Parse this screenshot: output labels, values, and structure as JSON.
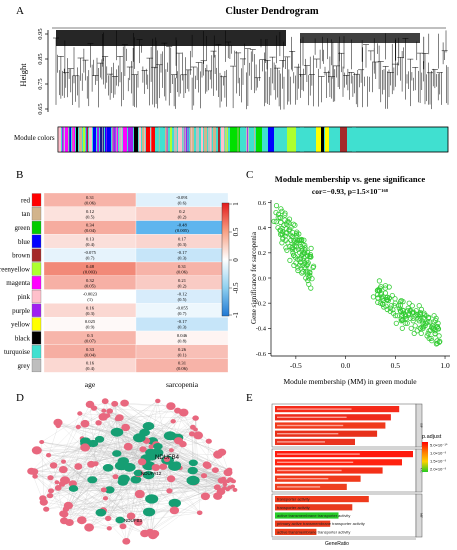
{
  "panels": {
    "A": {
      "letter": "A",
      "title": "Cluster Dendrogram",
      "ylabel": "Height",
      "yticks": [
        "0.95",
        "0.85",
        "0.75",
        "0.65"
      ],
      "strip_label": "Module colors"
    },
    "B": {
      "letter": "B",
      "columns": [
        "age",
        "sarcopenia"
      ],
      "colorbar_ticks": [
        "1",
        "0.5",
        "0",
        "-0.5",
        "-1"
      ],
      "rows": [
        {
          "module": "red",
          "color": "#ff0000",
          "age_r": "0.31",
          "age_p": "(0.06)",
          "age_v": 0.31,
          "sar_r": "-0.091",
          "sar_p": "(0.6)",
          "sar_v": -0.091
        },
        {
          "module": "tan",
          "color": "#d2b48c",
          "age_r": "0.12",
          "age_p": "(0.5)",
          "age_v": 0.12,
          "sar_r": "0.2",
          "sar_p": "(0.2)",
          "sar_v": 0.2
        },
        {
          "module": "green",
          "color": "#00cc00",
          "age_r": "0.34",
          "age_p": "(0.04)",
          "age_v": 0.34,
          "sar_r": "-0.48",
          "sar_p": "(0.005)",
          "sar_v": -0.48
        },
        {
          "module": "blue",
          "color": "#0000ff",
          "age_r": "0.13",
          "age_p": "(0.4)",
          "age_v": 0.13,
          "sar_r": "0.17",
          "sar_p": "(0.3)",
          "sar_v": 0.17
        },
        {
          "module": "brown",
          "color": "#a52a2a",
          "age_r": "-0.075",
          "age_p": "(0.7)",
          "age_v": -0.075,
          "sar_r": "-0.17",
          "sar_p": "(0.3)",
          "sar_v": -0.17
        },
        {
          "module": "greenyellow",
          "color": "#adff2f",
          "age_r": "0.48",
          "age_p": "(0.003)",
          "age_v": 0.48,
          "sar_r": "0.31",
          "sar_p": "(0.06)",
          "sar_v": 0.31
        },
        {
          "module": "magenta",
          "color": "#ff00ff",
          "age_r": "0.32",
          "age_p": "(0.05)",
          "age_v": 0.32,
          "sar_r": "0.21",
          "sar_p": "(0.2)",
          "sar_v": 0.21
        },
        {
          "module": "pink",
          "color": "#ffc0cb",
          "age_r": "-0.0023",
          "age_p": "(1)",
          "age_v": -0.0023,
          "sar_r": "-0.12",
          "sar_p": "(0.5)",
          "sar_v": -0.12
        },
        {
          "module": "purple",
          "color": "#a020f0",
          "age_r": "0.16",
          "age_p": "(0.3)",
          "age_v": 0.16,
          "sar_r": "-0.055",
          "sar_p": "(0.7)",
          "sar_v": -0.055
        },
        {
          "module": "yellow",
          "color": "#ffff00",
          "age_r": "0.025",
          "age_p": "(0.9)",
          "age_v": 0.025,
          "sar_r": "-0.17",
          "sar_p": "(0.3)",
          "sar_v": -0.17
        },
        {
          "module": "black",
          "color": "#000000",
          "age_r": "0.3",
          "age_p": "(0.07)",
          "age_v": 0.3,
          "sar_r": "0.046",
          "sar_p": "(0.8)",
          "sar_v": 0.046
        },
        {
          "module": "turquoise",
          "color": "#40e0d0",
          "age_r": "0.33",
          "age_p": "(0.04)",
          "age_v": 0.33,
          "sar_r": "0.26",
          "sar_p": "(0.1)",
          "sar_v": 0.26
        },
        {
          "module": "grey",
          "color": "#bebebe",
          "age_r": "0.16",
          "age_p": "(0.4)",
          "age_v": 0.16,
          "sar_r": "0.31",
          "sar_p": "(0.06)",
          "sar_v": 0.31
        }
      ]
    },
    "C": {
      "letter": "C",
      "title": "Module membership vs. gene significance",
      "subtitle": "cor=−0.93, p=1.5×10⁻¹⁶⁸",
      "xlabel": "Module membership (MM) in green module",
      "ylabel": "Gene significance for sarcopenia",
      "xticks": [
        "-0.5",
        "0.0",
        "0.5",
        "1.0"
      ],
      "yticks": [
        "0.6",
        "0.4",
        "0.2",
        "0.0",
        "-0.2",
        "-0.4",
        "-0.6"
      ]
    },
    "D": {
      "letter": "D",
      "labels": [
        "NDUFB4",
        "NDUFA12",
        "NDUFB3"
      ]
    },
    "E": {
      "letter": "E",
      "xlabel": "GeneRatio",
      "legend_title": "p.adjust",
      "legend_ticks": [
        "5.0×10⁻¹⁰",
        "1.0×10⁻⁹",
        "1.5×10⁻⁹",
        "2.0×10⁻⁹"
      ],
      "facets": [
        "BP",
        "CC",
        "MF"
      ],
      "mf_terms": [
        "transporter activity",
        "transporter activity",
        "active transmembrane transporter activity",
        "primary active transmembrane transporter activity",
        "active transmembrane transporter activity"
      ]
    }
  },
  "chart_data": [
    {
      "type": "heatmap",
      "title": "",
      "columns": [
        "age",
        "sarcopenia"
      ],
      "rows": [
        "red",
        "tan",
        "green",
        "blue",
        "brown",
        "greenyellow",
        "magenta",
        "pink",
        "purple",
        "yellow",
        "black",
        "turquoise",
        "grey"
      ],
      "values": [
        [
          0.31,
          -0.091
        ],
        [
          0.12,
          0.2
        ],
        [
          0.34,
          -0.48
        ],
        [
          0.13,
          0.17
        ],
        [
          -0.075,
          -0.17
        ],
        [
          0.48,
          0.31
        ],
        [
          0.32,
          0.21
        ],
        [
          -0.0023,
          -0.12
        ],
        [
          0.16,
          -0.055
        ],
        [
          0.025,
          -0.17
        ],
        [
          0.3,
          0.046
        ],
        [
          0.33,
          0.26
        ],
        [
          0.16,
          0.31
        ]
      ],
      "range": [
        -1,
        1
      ]
    },
    {
      "type": "scatter",
      "title": "Module membership vs. gene significance",
      "xlabel": "Module membership (MM) in green module",
      "ylabel": "Gene significance for sarcopenia",
      "xlim": [
        -0.75,
        1.05
      ],
      "ylim": [
        -0.62,
        0.62
      ],
      "series": [
        {
          "x": [
            -0.72,
            -0.7,
            -0.68,
            -0.66,
            -0.65,
            -0.64,
            -0.62,
            -0.61,
            -0.6,
            -0.58,
            -0.57,
            -0.56,
            -0.55,
            -0.54,
            -0.53,
            -0.52,
            -0.51,
            -0.5,
            -0.49,
            -0.48,
            -0.47,
            -0.46,
            -0.45,
            -0.44,
            -0.43,
            -0.42,
            -0.41,
            -0.4,
            -0.39,
            -0.38,
            -0.37,
            -0.36,
            -0.35,
            -0.6,
            -0.55,
            -0.5,
            -0.45,
            -0.42,
            -0.38,
            -0.62,
            -0.58,
            -0.52,
            -0.48,
            -0.44,
            -0.4,
            -0.36,
            -0.66,
            -0.63,
            -0.59,
            -0.54,
            -0.5,
            -0.46,
            -0.43,
            -0.39,
            -0.57,
            -0.53,
            -0.49,
            -0.45,
            -0.41,
            -0.37,
            -0.6,
            -0.56,
            -0.51,
            -0.47,
            -0.44,
            -0.38,
            -0.64,
            -0.61,
            -0.55,
            -0.52,
            -0.48,
            -0.42,
            0.28,
            0.32,
            0.35,
            0.38,
            0.4,
            0.42,
            0.44,
            0.46,
            0.48,
            0.5,
            0.52,
            0.54,
            0.56,
            0.58,
            0.6,
            0.62,
            0.64,
            0.66,
            0.68,
            0.7,
            0.72,
            0.74,
            0.76,
            0.78,
            0.8,
            0.82,
            0.84,
            0.86,
            0.88,
            0.9,
            0.92,
            0.94,
            0.45,
            0.5,
            0.55,
            0.6,
            0.65,
            0.7,
            0.75,
            0.8,
            0.85,
            0.9,
            0.4,
            0.47,
            0.53,
            0.58,
            0.63,
            0.68,
            0.73,
            0.78,
            0.83,
            0.88,
            0.93,
            0.43,
            0.49,
            0.56,
            0.61,
            0.67,
            0.71,
            0.77,
            0.81,
            0.87,
            0.91,
            0.36,
            0.51,
            0.57,
            0.64,
            0.69,
            0.74,
            0.79,
            0.84,
            0.89
          ],
          "y": [
            0.45,
            0.52,
            0.4,
            0.48,
            0.55,
            0.35,
            0.42,
            0.5,
            0.3,
            0.45,
            0.38,
            0.25,
            0.4,
            0.33,
            0.2,
            0.3,
            0.42,
            0.22,
            0.28,
            0.15,
            0.35,
            0.1,
            0.25,
            0.18,
            0.05,
            0.2,
            0.12,
            0.0,
            0.1,
            0.05,
            -0.05,
            0.02,
            -0.08,
            0.36,
            0.3,
            0.12,
            0.3,
            0.14,
            -0.02,
            0.42,
            0.28,
            0.18,
            0.08,
            0.22,
            0.08,
            0.04,
            0.38,
            0.32,
            0.22,
            0.24,
            0.28,
            0.2,
            0.1,
            0.14,
            0.44,
            0.36,
            0.34,
            0.16,
            0.26,
            0.0,
            0.24,
            0.14,
            0.26,
            0.3,
            0.04,
            0.18,
            0.28,
            0.46,
            0.34,
            0.1,
            0.06,
            0.16,
            -0.15,
            -0.1,
            -0.2,
            -0.18,
            -0.12,
            -0.25,
            -0.16,
            -0.22,
            -0.28,
            -0.2,
            -0.3,
            -0.24,
            -0.34,
            -0.26,
            -0.3,
            -0.36,
            -0.28,
            -0.4,
            -0.32,
            -0.38,
            -0.42,
            -0.34,
            -0.44,
            -0.4,
            -0.36,
            -0.46,
            -0.42,
            -0.48,
            -0.38,
            -0.44,
            -0.5,
            -0.46,
            -0.24,
            -0.3,
            -0.26,
            -0.36,
            -0.32,
            -0.3,
            -0.4,
            -0.38,
            -0.35,
            -0.42,
            -0.08,
            -0.14,
            -0.22,
            -0.28,
            -0.24,
            -0.34,
            -0.3,
            -0.36,
            -0.44,
            -0.4,
            -0.36,
            -0.18,
            -0.22,
            -0.18,
            -0.32,
            -0.28,
            -0.26,
            -0.34,
            -0.3,
            -0.38,
            -0.32,
            -0.12,
            -0.36,
            -0.4,
            -0.2,
            -0.44,
            -0.22,
            -0.28,
            -0.48,
            -0.3
          ]
        }
      ]
    },
    {
      "type": "bar",
      "title": "",
      "xlabel": "GeneRatio",
      "facets": [
        "BP",
        "CC",
        "MF"
      ],
      "values_by_facet": [
        [
          0.9,
          0.84,
          0.8,
          0.74,
          0.58
        ],
        [
          1.0,
          0.92,
          0.78,
          0.62,
          0.52
        ],
        [
          0.68,
          0.56,
          0.46,
          0.4,
          0.3
        ]
      ]
    }
  ]
}
